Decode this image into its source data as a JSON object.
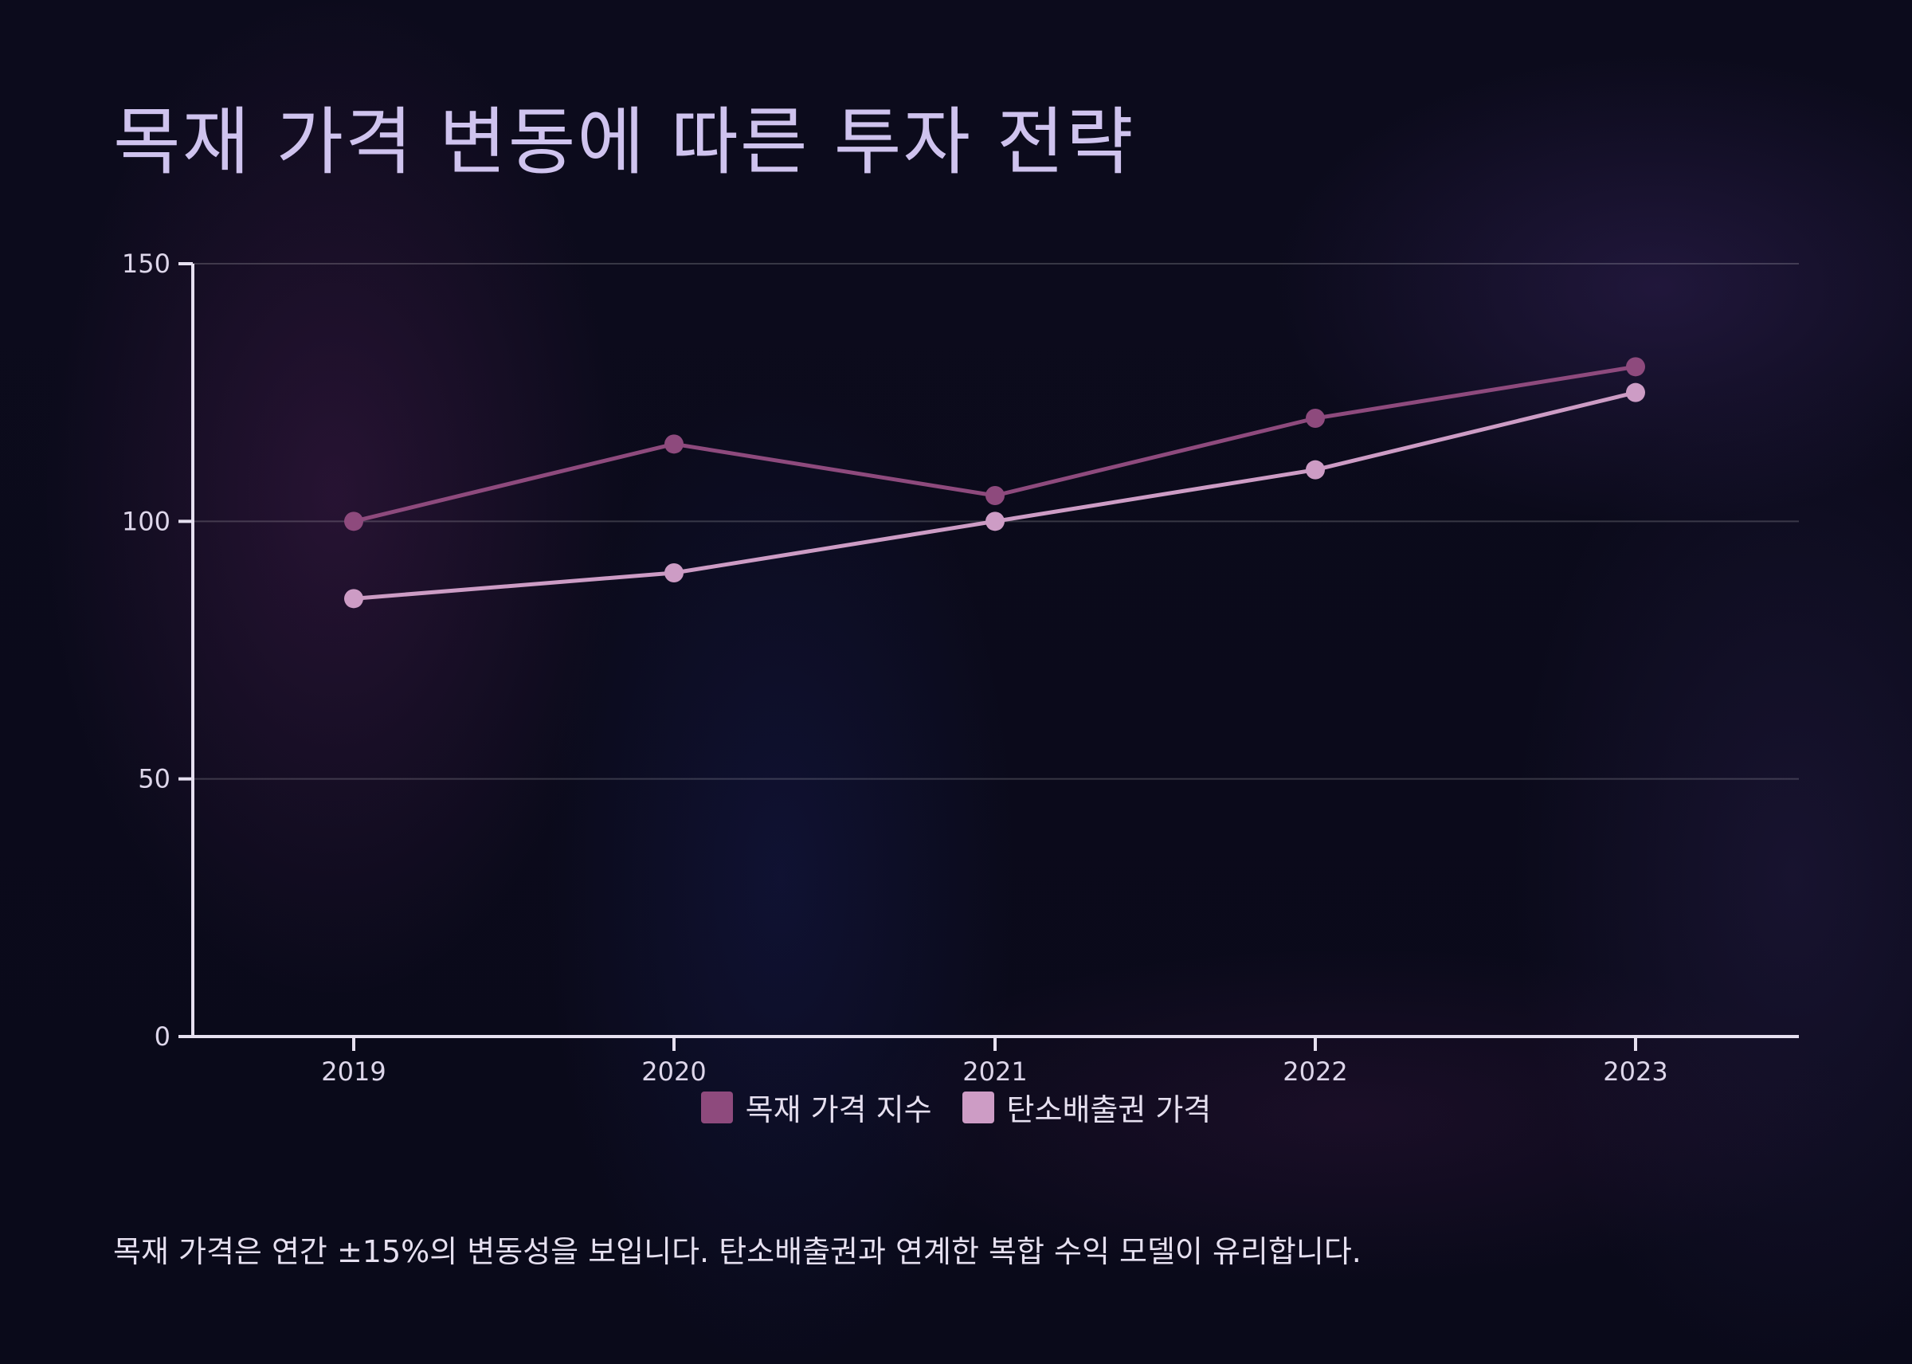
{
  "title": "목재 가격 변동에 따른 투자 전략",
  "footnote": "목재 가격은 연간 ±15%의 변동성을 보입니다. 탄소배출권과 연계한 복합 수익 모델이 유리합니다.",
  "chart_data": {
    "type": "line",
    "title": "",
    "xlabel": "",
    "ylabel": "",
    "x": [
      "2019",
      "2020",
      "2021",
      "2022",
      "2023"
    ],
    "ylim": [
      0,
      150
    ],
    "yticks": [
      0,
      50,
      100,
      150
    ],
    "grid": true,
    "legend_position": "bottom-center",
    "series": [
      {
        "name": "목재 가격 지수",
        "values": [
          100,
          115,
          105,
          120,
          130
        ],
        "color": "#8e4a7d"
      },
      {
        "name": "탄소배출권 가격",
        "values": [
          85,
          90,
          100,
          110,
          125
        ],
        "color": "#cd9cc5"
      }
    ]
  }
}
